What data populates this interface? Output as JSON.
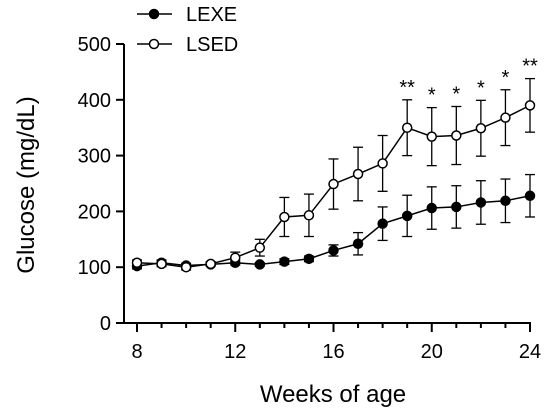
{
  "chart_data": {
    "type": "line",
    "xlabel": "Weeks of age",
    "ylabel": "Glucose (mg/dL)",
    "xlim": [
      8,
      24
    ],
    "ylim": [
      0,
      500
    ],
    "xticks": [
      8,
      12,
      16,
      20,
      24
    ],
    "yticks": [
      0,
      100,
      200,
      300,
      400,
      500
    ],
    "legend_position": "top-left",
    "grid": false,
    "series": [
      {
        "name": "LEXE",
        "marker": "filled-circle",
        "x": [
          8,
          9,
          10,
          11,
          12,
          13,
          14,
          15,
          16,
          17,
          18,
          19,
          20,
          21,
          22,
          23,
          24
        ],
        "y": [
          102,
          108,
          103,
          105,
          108,
          105,
          110,
          115,
          130,
          142,
          178,
          192,
          206,
          208,
          216,
          219,
          228
        ],
        "err": [
          5,
          5,
          4,
          3,
          4,
          3,
          5,
          5,
          10,
          20,
          30,
          37,
          38,
          38,
          39,
          39,
          38
        ]
      },
      {
        "name": "LSED",
        "marker": "open-circle",
        "x": [
          8,
          9,
          10,
          11,
          12,
          13,
          14,
          15,
          16,
          17,
          18,
          19,
          20,
          21,
          22,
          23,
          24
        ],
        "y": [
          108,
          106,
          100,
          106,
          117,
          135,
          190,
          193,
          249,
          267,
          286,
          350,
          334,
          336,
          349,
          368,
          390
        ],
        "err": [
          5,
          5,
          5,
          4,
          10,
          15,
          35,
          38,
          45,
          48,
          50,
          50,
          52,
          52,
          50,
          50,
          48
        ]
      }
    ],
    "annotations": [
      {
        "x": 19,
        "text": "**"
      },
      {
        "x": 20,
        "text": "*"
      },
      {
        "x": 21,
        "text": "*"
      },
      {
        "x": 22,
        "text": "*"
      },
      {
        "x": 23,
        "text": "*"
      },
      {
        "x": 24,
        "text": "**"
      }
    ]
  }
}
